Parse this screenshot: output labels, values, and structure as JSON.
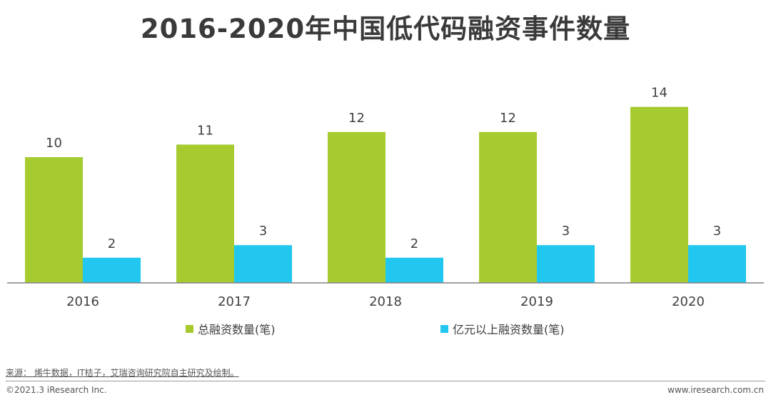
{
  "title": "2016-2020年中国低代码融资事件数量",
  "colors": {
    "series1": "#a6cb2f",
    "series2": "#22c7ef",
    "axis": "#808080"
  },
  "chart_data": {
    "type": "bar",
    "title": "2016-2020年中国低代码融资事件数量",
    "categories": [
      "2016",
      "2017",
      "2018",
      "2019",
      "2020"
    ],
    "series": [
      {
        "name": "总融资数量(笔)",
        "values": [
          10,
          11,
          12,
          12,
          14
        ]
      },
      {
        "name": "亿元以上融资数量(笔)",
        "values": [
          2,
          3,
          2,
          3,
          3
        ]
      }
    ],
    "ylim": [
      0,
      14
    ],
    "grid": false,
    "legend_position": "bottom",
    "data_labels": true
  },
  "footer": {
    "source": "来源： 烯牛数据，IT桔子，艾瑞咨询研究院自主研究及绘制。",
    "copyright": "©2021.3 iResearch Inc.",
    "website": "www.iresearch.com.cn"
  }
}
